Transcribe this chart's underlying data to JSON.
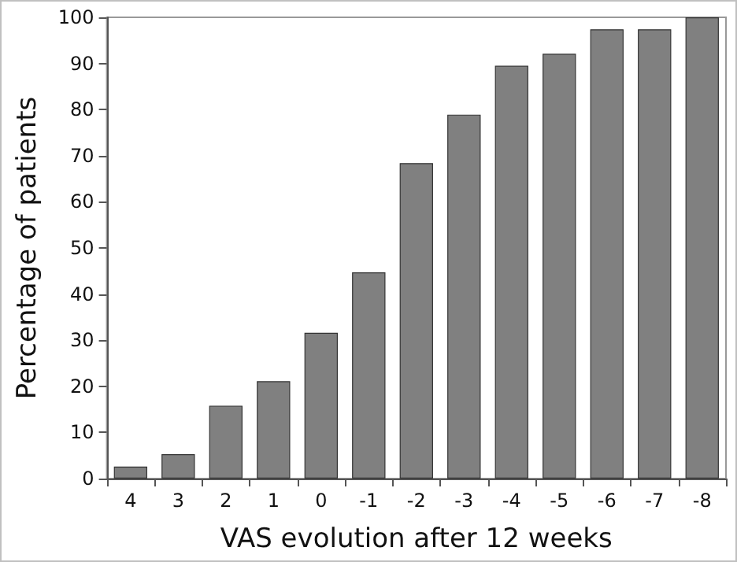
{
  "chart_data": {
    "type": "bar",
    "xlabel": "VAS evolution after 12 weeks",
    "ylabel": "Percentage of patients",
    "categories": [
      "4",
      "3",
      "2",
      "1",
      "0",
      "-1",
      "-2",
      "-3",
      "-4",
      "-5",
      "-6",
      "-7",
      "-8"
    ],
    "values": [
      2.6,
      5.3,
      15.8,
      21.1,
      31.6,
      44.7,
      68.4,
      78.9,
      89.5,
      92.1,
      97.4,
      97.4,
      100
    ],
    "color": "#808080",
    "ylim": [
      0,
      100
    ],
    "yticks": [
      0,
      10,
      20,
      30,
      40,
      50,
      60,
      70,
      80,
      90,
      100
    ],
    "grid": false
  }
}
